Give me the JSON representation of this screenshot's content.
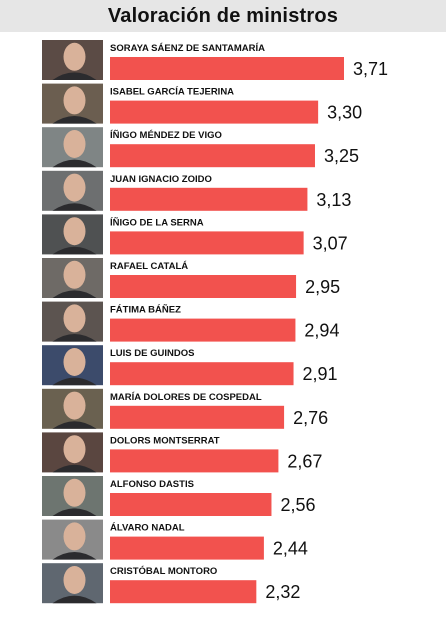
{
  "header": {
    "title": "Valoración de ministros"
  },
  "colors": {
    "bar": "#f2524e",
    "header_bg": "#e6e6e6"
  },
  "chart_data": {
    "type": "bar",
    "orientation": "horizontal",
    "title": "Valoración de ministros",
    "categories": [
      "SORAYA SÁENZ DE SANTAMARÍA",
      "ISABEL GARCÍA TEJERINA",
      "ÍÑIGO MÉNDEZ DE VIGO",
      "JUAN IGNACIO ZOIDO",
      "ÍÑIGO DE LA SERNA",
      "RAFAEL CATALÁ",
      "FÁTIMA BÁÑEZ",
      "LUIS DE GUINDOS",
      "MARÍA DOLORES DE COSPEDAL",
      "DOLORS MONTSERRAT",
      "ALFONSO DASTIS",
      "ÁLVARO NADAL",
      "CRISTÓBAL MONTORO"
    ],
    "values": [
      3.71,
      3.3,
      3.25,
      3.13,
      3.07,
      2.95,
      2.94,
      2.91,
      2.76,
      2.67,
      2.56,
      2.44,
      2.32
    ],
    "value_labels": [
      "3,71",
      "3,30",
      "3,25",
      "3,13",
      "3,07",
      "2,95",
      "2,94",
      "2,91",
      "2,76",
      "2,67",
      "2,56",
      "2,44",
      "2,32"
    ],
    "xlim": [
      0,
      3.71
    ],
    "grid": false,
    "legend": "none"
  }
}
